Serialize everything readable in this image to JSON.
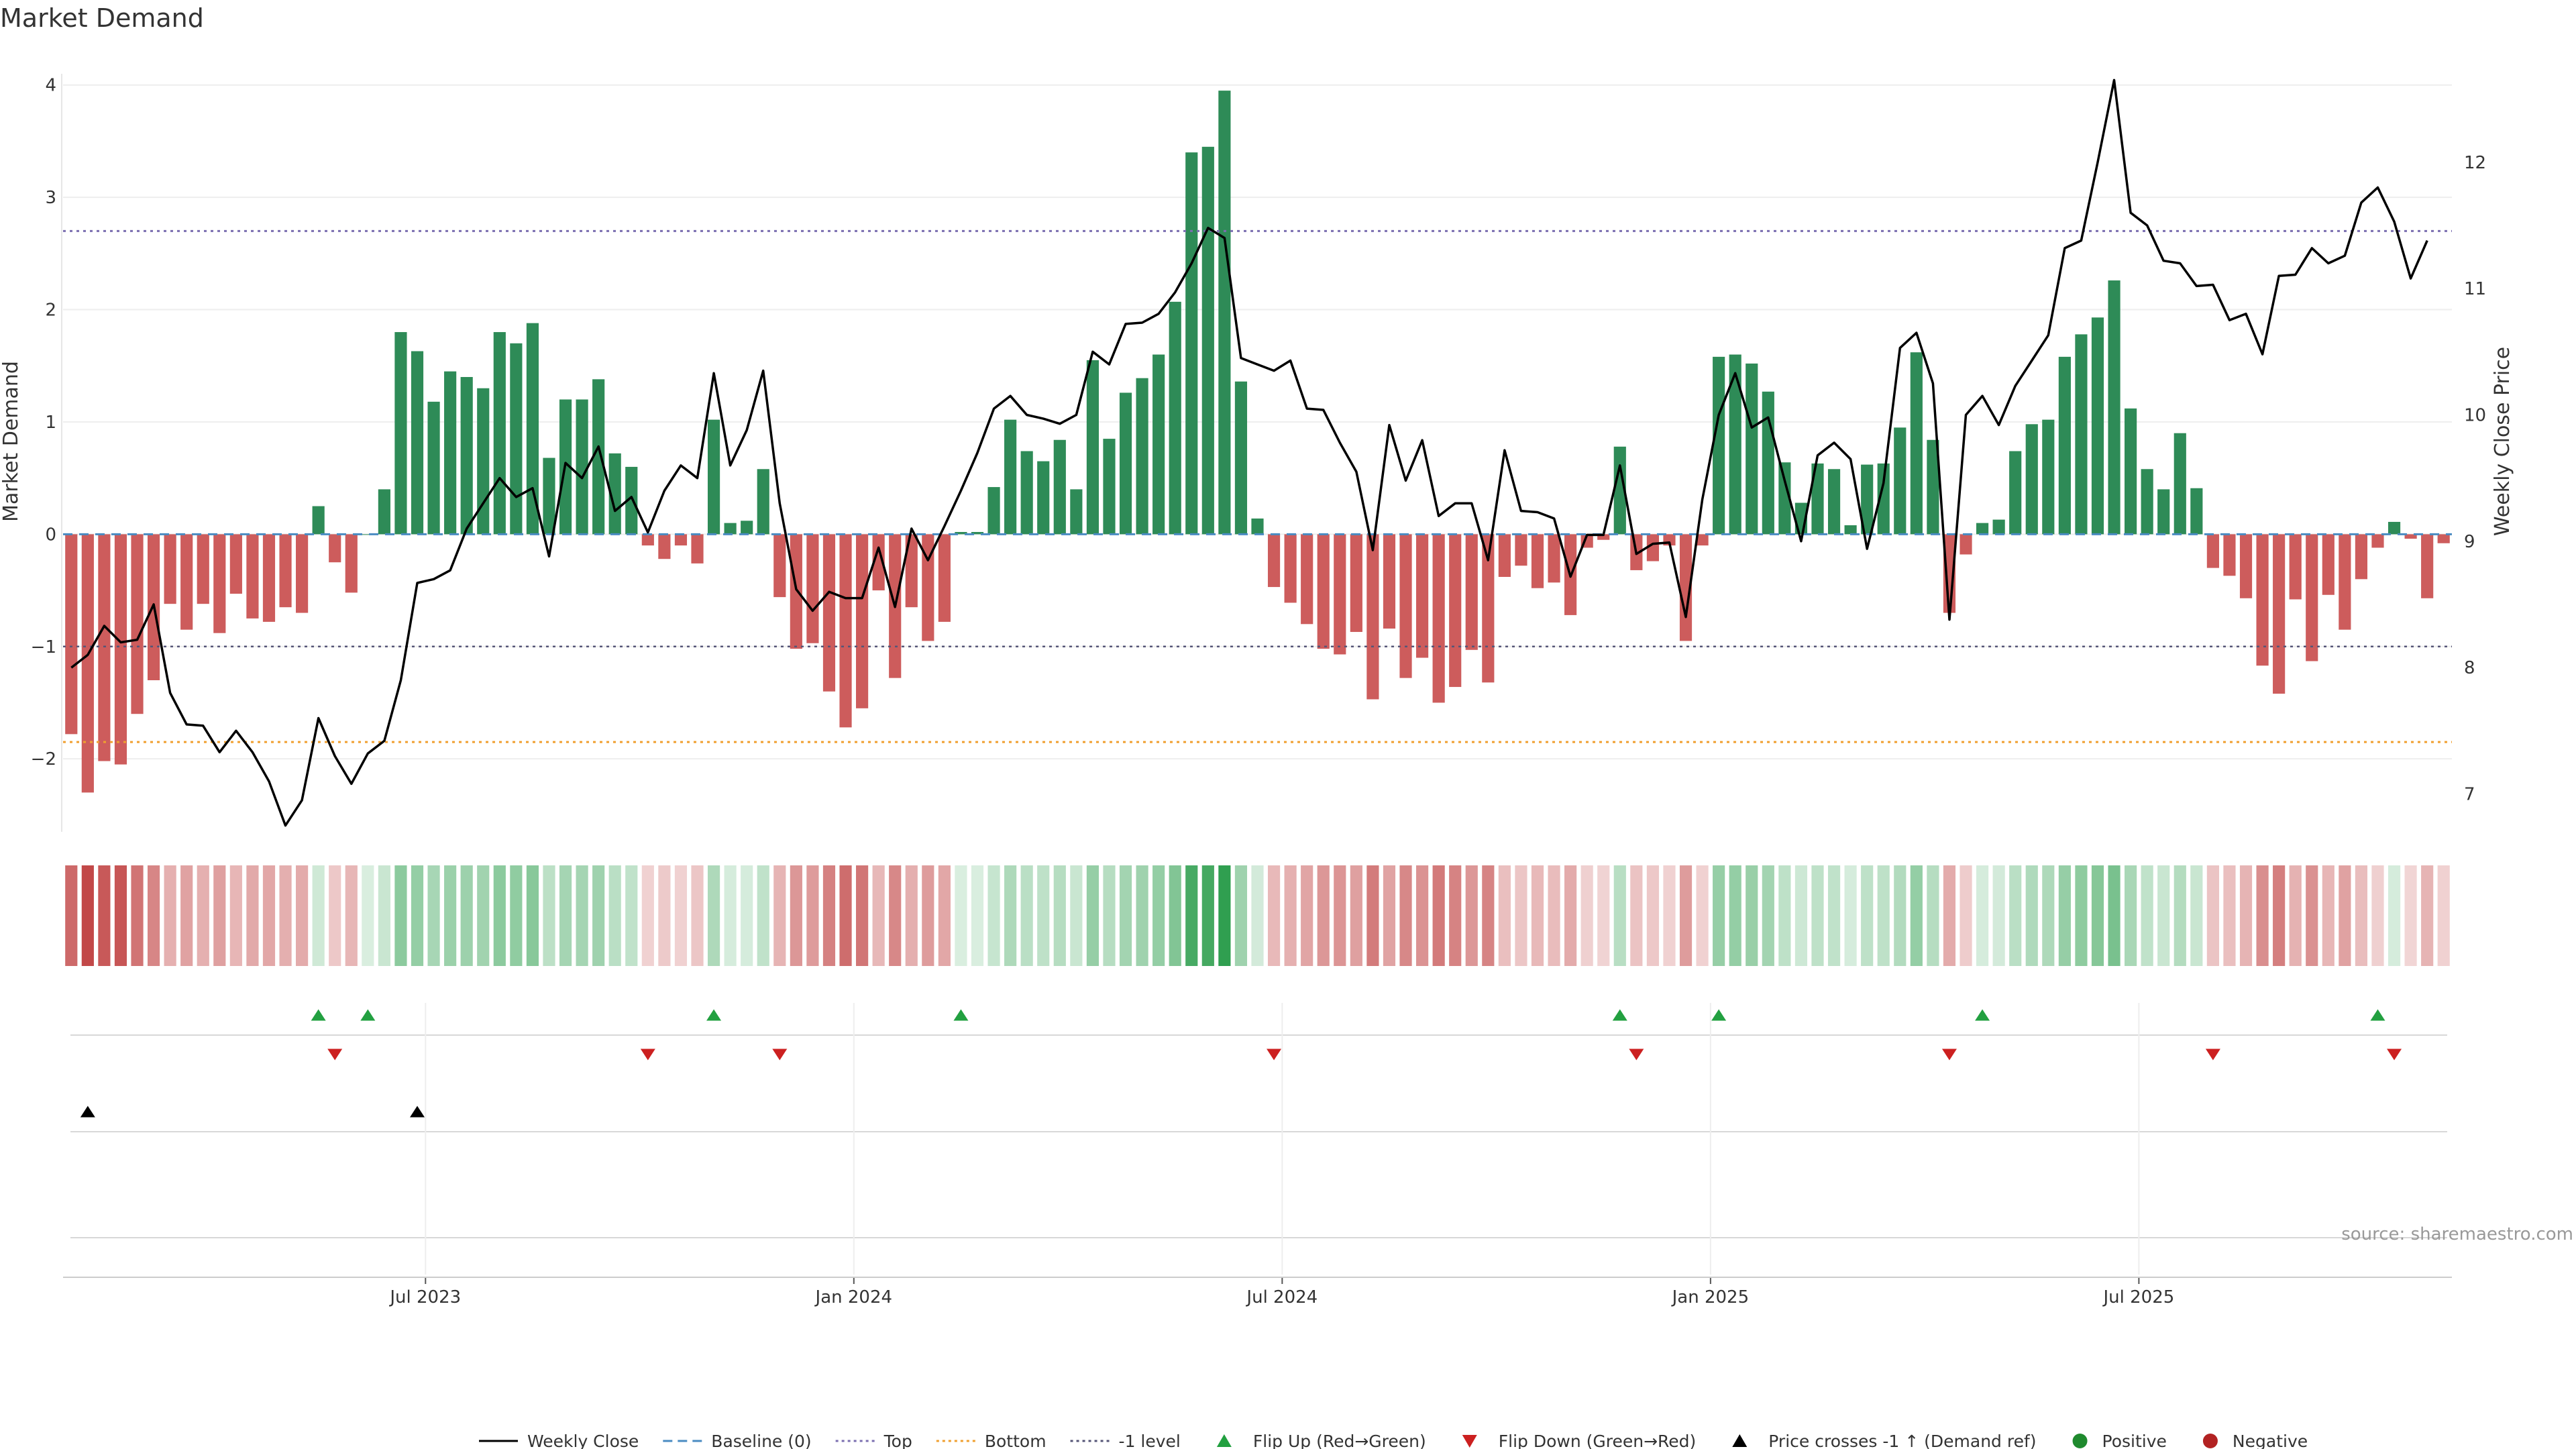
{
  "chart_data": {
    "type": "bar",
    "title": "Market Demand",
    "ylabel_left": "Market Demand",
    "ylabel_right": "Weekly Close Price",
    "source": "source: sharemaestro.com",
    "ylim_left": [
      -2.65,
      4.1
    ],
    "ylim_right": [
      6.7,
      12.7
    ],
    "yticks_left": [
      "−2",
      "−1",
      "0",
      "1",
      "2",
      "3",
      "4"
    ],
    "yticks_right": [
      "7",
      "8",
      "9",
      "10",
      "11",
      "12"
    ],
    "xtick_labels": [
      "Jul 2023",
      "Jan 2024",
      "Jul 2024",
      "Jan 2025",
      "Jul 2025"
    ],
    "xtick_week_index": [
      22,
      48,
      74,
      100,
      126
    ],
    "levels": {
      "baseline": 0,
      "top": 2.7,
      "bottom": -1.85,
      "minus_one": -1
    },
    "demand": [
      -1.78,
      -2.3,
      -2.02,
      -2.05,
      -1.6,
      -1.3,
      -0.62,
      -0.85,
      -0.62,
      -0.88,
      -0.53,
      -0.75,
      -0.78,
      -0.65,
      -0.7,
      0.25,
      -0.25,
      -0.52,
      0,
      0.4,
      1.8,
      1.63,
      1.18,
      1.45,
      1.4,
      1.3,
      1.8,
      1.7,
      1.88,
      0.68,
      1.2,
      1.2,
      1.38,
      0.72,
      0.6,
      -0.1,
      -0.22,
      -0.1,
      -0.26,
      1.02,
      0.1,
      0.12,
      0.58,
      -0.56,
      -1.02,
      -0.97,
      -1.4,
      -1.72,
      -1.55,
      -0.5,
      -1.28,
      -0.65,
      -0.95,
      -0.78,
      0.02,
      0.02,
      0.42,
      1.02,
      0.74,
      0.65,
      0.84,
      0.4,
      1.55,
      0.85,
      1.26,
      1.39,
      1.6,
      2.07,
      3.4,
      3.45,
      3.95,
      1.36,
      0.14,
      -0.47,
      -0.61,
      -0.8,
      -1.02,
      -1.07,
      -0.87,
      -1.47,
      -0.84,
      -1.28,
      -1.1,
      -1.5,
      -1.36,
      -1.03,
      -1.32,
      -0.38,
      -0.28,
      -0.48,
      -0.43,
      -0.72,
      -0.12,
      -0.05,
      0.78,
      -0.32,
      -0.24,
      -0.1,
      -0.95,
      -0.1,
      1.58,
      1.6,
      1.52,
      1.27,
      0.64,
      0.28,
      0.63,
      0.58,
      0.08,
      0.62,
      0.63,
      0.95,
      1.62,
      0.84,
      -0.7,
      -0.18,
      0.1,
      0.13,
      0.74,
      0.98,
      1.02,
      1.58,
      1.78,
      1.93,
      2.26,
      1.12,
      0.58,
      0.4,
      0.9,
      0.41,
      -0.3,
      -0.37,
      -0.57,
      -1.17,
      -1.42,
      -0.58,
      -1.13,
      -0.54,
      -0.85,
      -0.4,
      -0.12,
      0.11,
      -0.04,
      -0.57,
      -0.08
    ],
    "weekly_close": [
      8.0,
      8.1,
      8.33,
      8.2,
      8.22,
      8.5,
      7.8,
      7.55,
      7.54,
      7.33,
      7.5,
      7.33,
      7.1,
      6.75,
      6.95,
      7.6,
      7.3,
      7.08,
      7.32,
      7.42,
      7.9,
      8.67,
      8.7,
      8.77,
      9.1,
      9.3,
      9.5,
      9.35,
      9.42,
      8.88,
      9.62,
      9.5,
      9.75,
      9.24,
      9.35,
      9.07,
      9.4,
      9.6,
      9.5,
      10.33,
      9.6,
      9.88,
      10.35,
      9.3,
      8.62,
      8.45,
      8.6,
      8.55,
      8.55,
      8.95,
      8.48,
      9.1,
      8.85,
      9.12,
      9.4,
      9.7,
      10.05,
      10.15,
      10.0,
      9.97,
      9.93,
      10.0,
      10.5,
      10.4,
      10.72,
      10.73,
      10.8,
      10.97,
      11.2,
      11.48,
      11.4,
      10.45,
      10.4,
      10.35,
      10.43,
      10.05,
      10.04,
      9.78,
      9.55,
      8.93,
      9.92,
      9.48,
      9.8,
      9.2,
      9.3,
      9.3,
      8.85,
      9.72,
      9.24,
      9.23,
      9.18,
      8.72,
      9.05,
      9.05,
      9.6,
      8.9,
      8.98,
      8.99,
      8.4,
      9.33,
      10.0,
      10.33,
      9.9,
      9.98,
      9.48,
      9.0,
      9.68,
      9.78,
      9.65,
      8.94,
      9.46,
      10.53,
      10.65,
      10.25,
      8.38,
      10.0,
      10.15,
      9.92,
      10.23,
      10.43,
      10.63,
      11.32,
      11.38,
      12.0,
      12.65,
      11.6,
      11.5,
      11.22,
      11.2,
      11.02,
      11.03,
      10.75,
      10.8,
      10.48,
      11.1,
      11.11,
      11.32,
      11.2,
      11.26,
      11.68,
      11.8,
      11.53,
      11.08,
      11.38
    ],
    "flip_up_weeks": [
      15,
      18,
      39,
      54,
      94,
      100,
      116,
      140
    ],
    "flip_down_weeks": [
      16,
      35,
      43,
      73,
      95,
      114,
      130,
      141
    ],
    "price_cross_weeks": [
      1,
      21
    ],
    "legend": [
      {
        "label": "Weekly Close",
        "kind": "line",
        "color": "#000000"
      },
      {
        "label": "Baseline (0)",
        "kind": "dash",
        "color": "#4a8bc2"
      },
      {
        "label": "Top",
        "kind": "dot",
        "color": "#7b6fb0"
      },
      {
        "label": "Bottom",
        "kind": "dot",
        "color": "#f0a030"
      },
      {
        "label": "-1 level",
        "kind": "dot",
        "color": "#555577"
      },
      {
        "label": "Flip Up (Red→Green)",
        "kind": "triangle-up",
        "color": "#22a040"
      },
      {
        "label": "Flip Down (Green→Red)",
        "kind": "triangle-down",
        "color": "#cc2020"
      },
      {
        "label": "Price crosses -1 ↑ (Demand ref)",
        "kind": "triangle-up",
        "color": "#000000"
      },
      {
        "label": "Positive",
        "kind": "circle",
        "color": "#1f8a2e"
      },
      {
        "label": "Negative",
        "kind": "circle",
        "color": "#b22222"
      }
    ]
  },
  "colors": {
    "positive_bar": "#2e8b57",
    "negative_bar": "#cd5c5c",
    "grid": "#eeeeee",
    "track": "#d8d8d8"
  }
}
